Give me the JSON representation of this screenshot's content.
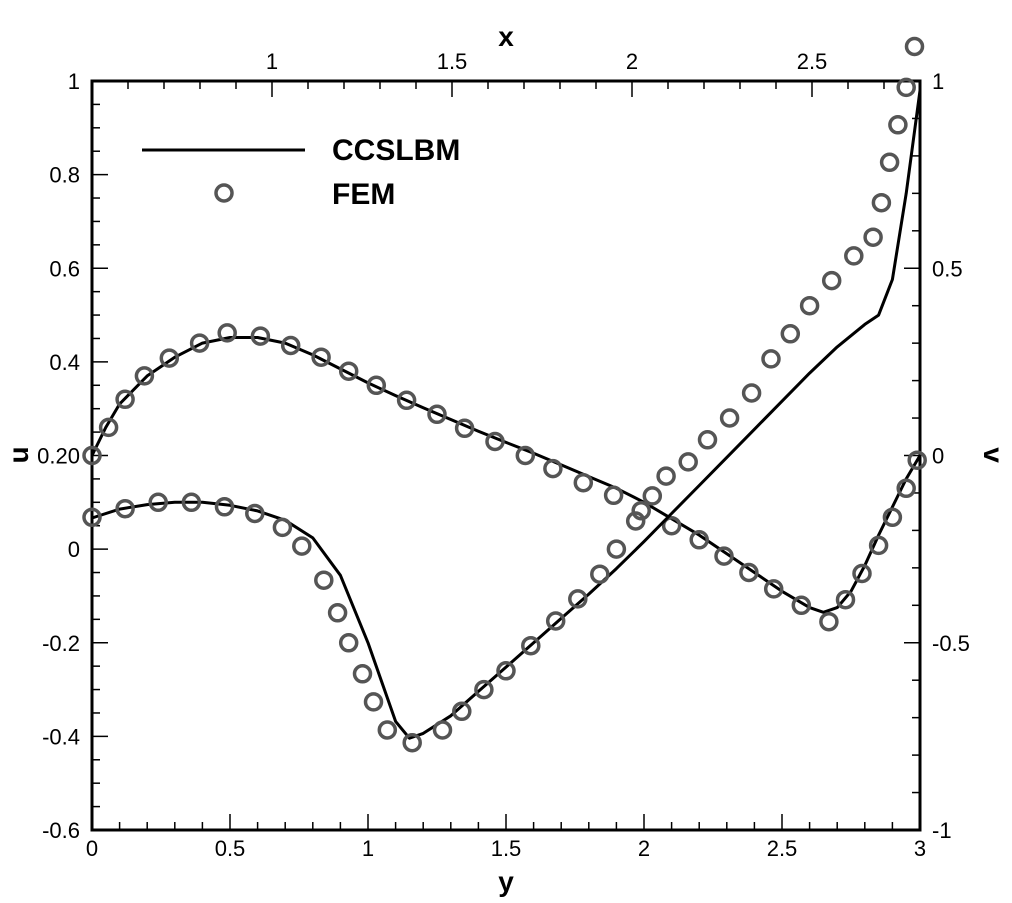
{
  "chart_data": {
    "type": "line",
    "axes": {
      "bottom": {
        "label": "y",
        "range": [
          0,
          3
        ],
        "ticks": [
          "0",
          "0.5",
          "1",
          "1.5",
          "2",
          "2.5",
          "3"
        ],
        "tick_values": [
          0,
          0.5,
          1,
          1.5,
          2,
          2.5,
          3
        ]
      },
      "left": {
        "label": "u",
        "range": [
          -0.6,
          1
        ],
        "ticks": [
          "-0.6",
          "-0.4",
          "-0.2",
          "0",
          "0.20",
          "0.4",
          "0.6",
          "0.8",
          "1"
        ],
        "tick_values": [
          -0.6,
          -0.4,
          -0.2,
          0,
          0.2,
          0.4,
          0.6,
          0.8,
          1
        ]
      },
      "top": {
        "label": "x",
        "range": [
          0.5,
          2.8
        ],
        "ticks": [
          "1",
          "1.5",
          "2",
          "2.5"
        ],
        "tick_values": [
          1,
          1.5,
          2,
          2.5
        ]
      },
      "right": {
        "label": "v",
        "range": [
          -1,
          1
        ],
        "ticks": [
          "-1",
          "-0.5",
          "0",
          "0.5",
          "1"
        ],
        "tick_values": [
          -1,
          -0.5,
          0,
          0.5,
          1
        ]
      }
    },
    "legend": {
      "position": "top-left",
      "entries": [
        {
          "name": "CCSLBM",
          "marker": "line"
        },
        {
          "name": "FEM",
          "marker": "circle"
        }
      ]
    },
    "series": [
      {
        "name": "CCSLBM",
        "axes": [
          "bottom",
          "left"
        ],
        "style": "line",
        "points": [
          [
            0,
            0.2
          ],
          [
            0.05,
            0.26
          ],
          [
            0.1,
            0.31
          ],
          [
            0.2,
            0.37
          ],
          [
            0.3,
            0.41
          ],
          [
            0.4,
            0.44
          ],
          [
            0.5,
            0.452
          ],
          [
            0.6,
            0.452
          ],
          [
            0.7,
            0.44
          ],
          [
            0.8,
            0.415
          ],
          [
            0.9,
            0.385
          ],
          [
            1.0,
            0.355
          ],
          [
            1.1,
            0.328
          ],
          [
            1.2,
            0.302
          ],
          [
            1.3,
            0.277
          ],
          [
            1.4,
            0.252
          ],
          [
            1.5,
            0.228
          ],
          [
            1.6,
            0.205
          ],
          [
            1.7,
            0.18
          ],
          [
            1.8,
            0.155
          ],
          [
            1.9,
            0.13
          ],
          [
            2.0,
            0.1
          ],
          [
            2.1,
            0.065
          ],
          [
            2.2,
            0.03
          ],
          [
            2.3,
            -0.01
          ],
          [
            2.4,
            -0.05
          ],
          [
            2.5,
            -0.09
          ],
          [
            2.6,
            -0.125
          ],
          [
            2.65,
            -0.135
          ],
          [
            2.7,
            -0.125
          ],
          [
            2.75,
            -0.09
          ],
          [
            2.8,
            -0.035
          ],
          [
            2.85,
            0.03
          ],
          [
            2.9,
            0.09
          ],
          [
            2.95,
            0.15
          ],
          [
            3.0,
            0.2
          ]
        ]
      },
      {
        "name": "FEM",
        "axes": [
          "bottom",
          "left"
        ],
        "style": "circle",
        "points": [
          [
            0,
            0.2
          ],
          [
            0.06,
            0.26
          ],
          [
            0.12,
            0.32
          ],
          [
            0.19,
            0.37
          ],
          [
            0.28,
            0.408
          ],
          [
            0.39,
            0.44
          ],
          [
            0.49,
            0.462
          ],
          [
            0.61,
            0.455
          ],
          [
            0.72,
            0.435
          ],
          [
            0.83,
            0.41
          ],
          [
            0.93,
            0.38
          ],
          [
            1.03,
            0.35
          ],
          [
            1.14,
            0.318
          ],
          [
            1.25,
            0.288
          ],
          [
            1.35,
            0.258
          ],
          [
            1.46,
            0.23
          ],
          [
            1.57,
            0.2
          ],
          [
            1.67,
            0.172
          ],
          [
            1.78,
            0.142
          ],
          [
            1.89,
            0.115
          ],
          [
            1.99,
            0.082
          ],
          [
            2.1,
            0.05
          ],
          [
            2.2,
            0.02
          ],
          [
            2.29,
            -0.015
          ],
          [
            2.38,
            -0.05
          ],
          [
            2.47,
            -0.085
          ],
          [
            2.57,
            -0.12
          ],
          [
            2.67,
            -0.155
          ],
          [
            2.73,
            -0.108
          ],
          [
            2.79,
            -0.052
          ],
          [
            2.85,
            0.008
          ],
          [
            2.9,
            0.068
          ],
          [
            2.95,
            0.13
          ],
          [
            2.99,
            0.19
          ]
        ]
      },
      {
        "name": "CCSLBM",
        "axes": [
          "bottom",
          "right"
        ],
        "style": "line",
        "points": [
          [
            0,
            -0.167
          ],
          [
            0.1,
            -0.143
          ],
          [
            0.2,
            -0.131
          ],
          [
            0.3,
            -0.125
          ],
          [
            0.4,
            -0.125
          ],
          [
            0.5,
            -0.133
          ],
          [
            0.6,
            -0.148
          ],
          [
            0.7,
            -0.173
          ],
          [
            0.8,
            -0.22
          ],
          [
            0.9,
            -0.32
          ],
          [
            1.0,
            -0.5
          ],
          [
            1.1,
            -0.71
          ],
          [
            1.15,
            -0.755
          ],
          [
            1.2,
            -0.742
          ],
          [
            1.3,
            -0.695
          ],
          [
            1.4,
            -0.63
          ],
          [
            1.5,
            -0.565
          ],
          [
            1.6,
            -0.5
          ],
          [
            1.7,
            -0.435
          ],
          [
            1.8,
            -0.37
          ],
          [
            1.9,
            -0.302
          ],
          [
            2.0,
            -0.23
          ],
          [
            2.1,
            -0.155
          ],
          [
            2.2,
            -0.08
          ],
          [
            2.3,
            -0.005
          ],
          [
            2.4,
            0.07
          ],
          [
            2.5,
            0.145
          ],
          [
            2.6,
            0.22
          ],
          [
            2.7,
            0.29
          ],
          [
            2.8,
            0.35
          ],
          [
            2.85,
            0.375
          ],
          [
            2.9,
            0.47
          ],
          [
            2.95,
            0.7
          ],
          [
            3.0,
            0.975
          ]
        ]
      },
      {
        "name": "FEM",
        "axes": [
          "bottom",
          "right"
        ],
        "style": "circle",
        "points": [
          [
            0,
            -0.165
          ],
          [
            0.12,
            -0.142
          ],
          [
            0.24,
            -0.125
          ],
          [
            0.36,
            -0.125
          ],
          [
            0.48,
            -0.137
          ],
          [
            0.59,
            -0.155
          ],
          [
            0.69,
            -0.192
          ],
          [
            0.76,
            -0.242
          ],
          [
            0.84,
            -0.333
          ],
          [
            0.89,
            -0.42
          ],
          [
            0.93,
            -0.5
          ],
          [
            0.98,
            -0.583
          ],
          [
            1.02,
            -0.658
          ],
          [
            1.07,
            -0.733
          ],
          [
            1.16,
            -0.767
          ],
          [
            1.27,
            -0.733
          ],
          [
            1.34,
            -0.683
          ],
          [
            1.42,
            -0.625
          ],
          [
            1.5,
            -0.575
          ],
          [
            1.59,
            -0.508
          ],
          [
            1.68,
            -0.442
          ],
          [
            1.76,
            -0.383
          ],
          [
            1.84,
            -0.317
          ],
          [
            1.9,
            -0.25
          ],
          [
            1.97,
            -0.175
          ],
          [
            2.03,
            -0.108
          ],
          [
            2.08,
            -0.055
          ],
          [
            2.16,
            -0.017
          ],
          [
            2.23,
            0.042
          ],
          [
            2.31,
            0.1
          ],
          [
            2.39,
            0.167
          ],
          [
            2.46,
            0.258
          ],
          [
            2.53,
            0.325
          ],
          [
            2.6,
            0.4
          ],
          [
            2.68,
            0.467
          ],
          [
            2.76,
            0.533
          ],
          [
            2.83,
            0.583
          ],
          [
            2.86,
            0.675
          ],
          [
            2.89,
            0.783
          ],
          [
            2.92,
            0.883
          ],
          [
            2.95,
            0.983
          ],
          [
            2.98,
            1.092
          ]
        ]
      }
    ]
  }
}
